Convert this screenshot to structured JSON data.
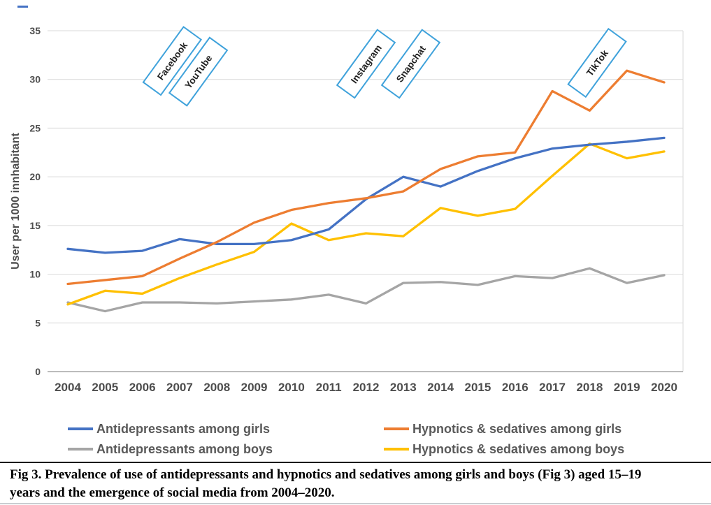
{
  "figure": {
    "caption_lines": [
      "Fig 3.  Prevalence of use of antidepressants and hypnotics and sedatives among girls and boys (Fig 3) aged 15–19",
      "years and the emergence of social media from 2004–2020."
    ]
  },
  "chart_data": {
    "type": "line",
    "title": "",
    "xlabel": "",
    "ylabel": "User per 1000 innhabitant",
    "ylim": [
      0,
      35
    ],
    "yticks": [
      0,
      5,
      10,
      15,
      20,
      25,
      30,
      35
    ],
    "grid": true,
    "legend_position": "bottom",
    "x": [
      2004,
      2005,
      2006,
      2007,
      2008,
      2009,
      2010,
      2011,
      2012,
      2013,
      2014,
      2015,
      2016,
      2017,
      2018,
      2019,
      2020
    ],
    "series": [
      {
        "name": "Antidepressants among girls",
        "color": "#4472C4",
        "values": [
          12.6,
          12.2,
          12.4,
          13.6,
          13.1,
          13.1,
          13.5,
          14.6,
          17.7,
          20.0,
          19.0,
          20.6,
          21.9,
          22.9,
          23.3,
          23.6,
          24.0
        ]
      },
      {
        "name": "Hypnotics & sedatives among girls",
        "color": "#ED7D31",
        "values": [
          9.0,
          9.4,
          9.8,
          11.6,
          13.3,
          15.3,
          16.6,
          17.3,
          17.8,
          18.5,
          20.8,
          22.1,
          22.5,
          28.8,
          26.8,
          30.9,
          29.7
        ]
      },
      {
        "name": "Antidepressants among boys",
        "color": "#A5A5A5",
        "values": [
          7.1,
          6.2,
          7.1,
          7.1,
          7.0,
          7.2,
          7.4,
          7.9,
          7.0,
          9.1,
          9.2,
          8.9,
          9.8,
          9.6,
          10.6,
          9.1,
          9.9
        ]
      },
      {
        "name": "Hypnotics & sedatives among boys",
        "color": "#FFC000",
        "values": [
          6.9,
          8.3,
          8.0,
          9.6,
          11.0,
          12.3,
          15.2,
          13.5,
          14.2,
          13.9,
          16.8,
          16.0,
          16.7,
          20.1,
          23.4,
          21.9,
          22.6
        ]
      }
    ],
    "annotations": [
      {
        "label": "Facebook",
        "year": 2006.8,
        "value": 31.9
      },
      {
        "label": "YouTube",
        "year": 2007.5,
        "value": 30.8
      },
      {
        "label": "Instagram",
        "year": 2012.0,
        "value": 31.6
      },
      {
        "label": "Snapchat",
        "year": 2013.2,
        "value": 31.6
      },
      {
        "label": "TikTok",
        "year": 2018.2,
        "value": 31.7
      }
    ],
    "annotation_border_color": "#3FA2DB"
  },
  "legend": {
    "columns": [
      {
        "items": [
          {
            "label": "Antidepressants among girls",
            "color": "#4472C4"
          },
          {
            "label": "Antidepressants among boys",
            "color": "#A5A5A5"
          }
        ]
      },
      {
        "items": [
          {
            "label": "Hypnotics & sedatives among girls",
            "color": "#ED7D31"
          },
          {
            "label": "Hypnotics & sedatives among boys",
            "color": "#FFC000"
          }
        ]
      }
    ]
  }
}
